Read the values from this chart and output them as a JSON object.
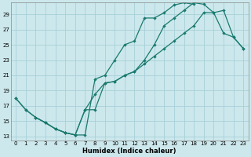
{
  "xlabel": "Humidex (Indice chaleur)",
  "xlim": [
    -0.5,
    23.5
  ],
  "ylim": [
    12.5,
    30.5
  ],
  "xticks": [
    0,
    1,
    2,
    3,
    4,
    5,
    6,
    7,
    8,
    9,
    10,
    11,
    12,
    13,
    14,
    15,
    16,
    17,
    18,
    19,
    20,
    21,
    22,
    23
  ],
  "yticks": [
    13,
    15,
    17,
    19,
    21,
    23,
    25,
    27,
    29
  ],
  "bg_color": "#cce8ec",
  "grid_color": "#a8d0d8",
  "line_color": "#1a7a6e",
  "line1_x": [
    0,
    1,
    2,
    3,
    4,
    5,
    6,
    7,
    8,
    9,
    10,
    11,
    12,
    13,
    14,
    15,
    16,
    17,
    18
  ],
  "line1_y": [
    18,
    16.5,
    15.5,
    14.8,
    14.0,
    13.5,
    13.2,
    13.2,
    20.5,
    21.0,
    23.0,
    25.0,
    25.5,
    28.5,
    28.5,
    29.2,
    30.2,
    30.5,
    30.3
  ],
  "line2_x": [
    2,
    3,
    4,
    5,
    6,
    7,
    8,
    9,
    10,
    11,
    12,
    13,
    14,
    15,
    16,
    17,
    18,
    19,
    20,
    21,
    22,
    23
  ],
  "line2_y": [
    15.5,
    14.8,
    14.0,
    13.5,
    13.2,
    16.5,
    16.5,
    20.0,
    20.2,
    21.0,
    21.5,
    22.5,
    23.5,
    24.5,
    25.5,
    26.5,
    27.5,
    29.2,
    29.2,
    29.5,
    26.0,
    24.5
  ],
  "line3_x": [
    0,
    1,
    2,
    3,
    4,
    5,
    6,
    7,
    8,
    9,
    10,
    11,
    12,
    13,
    14,
    15,
    16,
    17,
    18,
    19,
    20,
    21,
    22,
    23
  ],
  "line3_y": [
    18,
    16.5,
    15.5,
    14.8,
    14.0,
    13.5,
    13.2,
    16.5,
    18.5,
    20.0,
    20.2,
    21.0,
    21.5,
    23.0,
    25.0,
    27.5,
    28.5,
    29.5,
    30.5,
    30.3,
    29.2,
    26.5,
    26.0,
    24.5
  ]
}
